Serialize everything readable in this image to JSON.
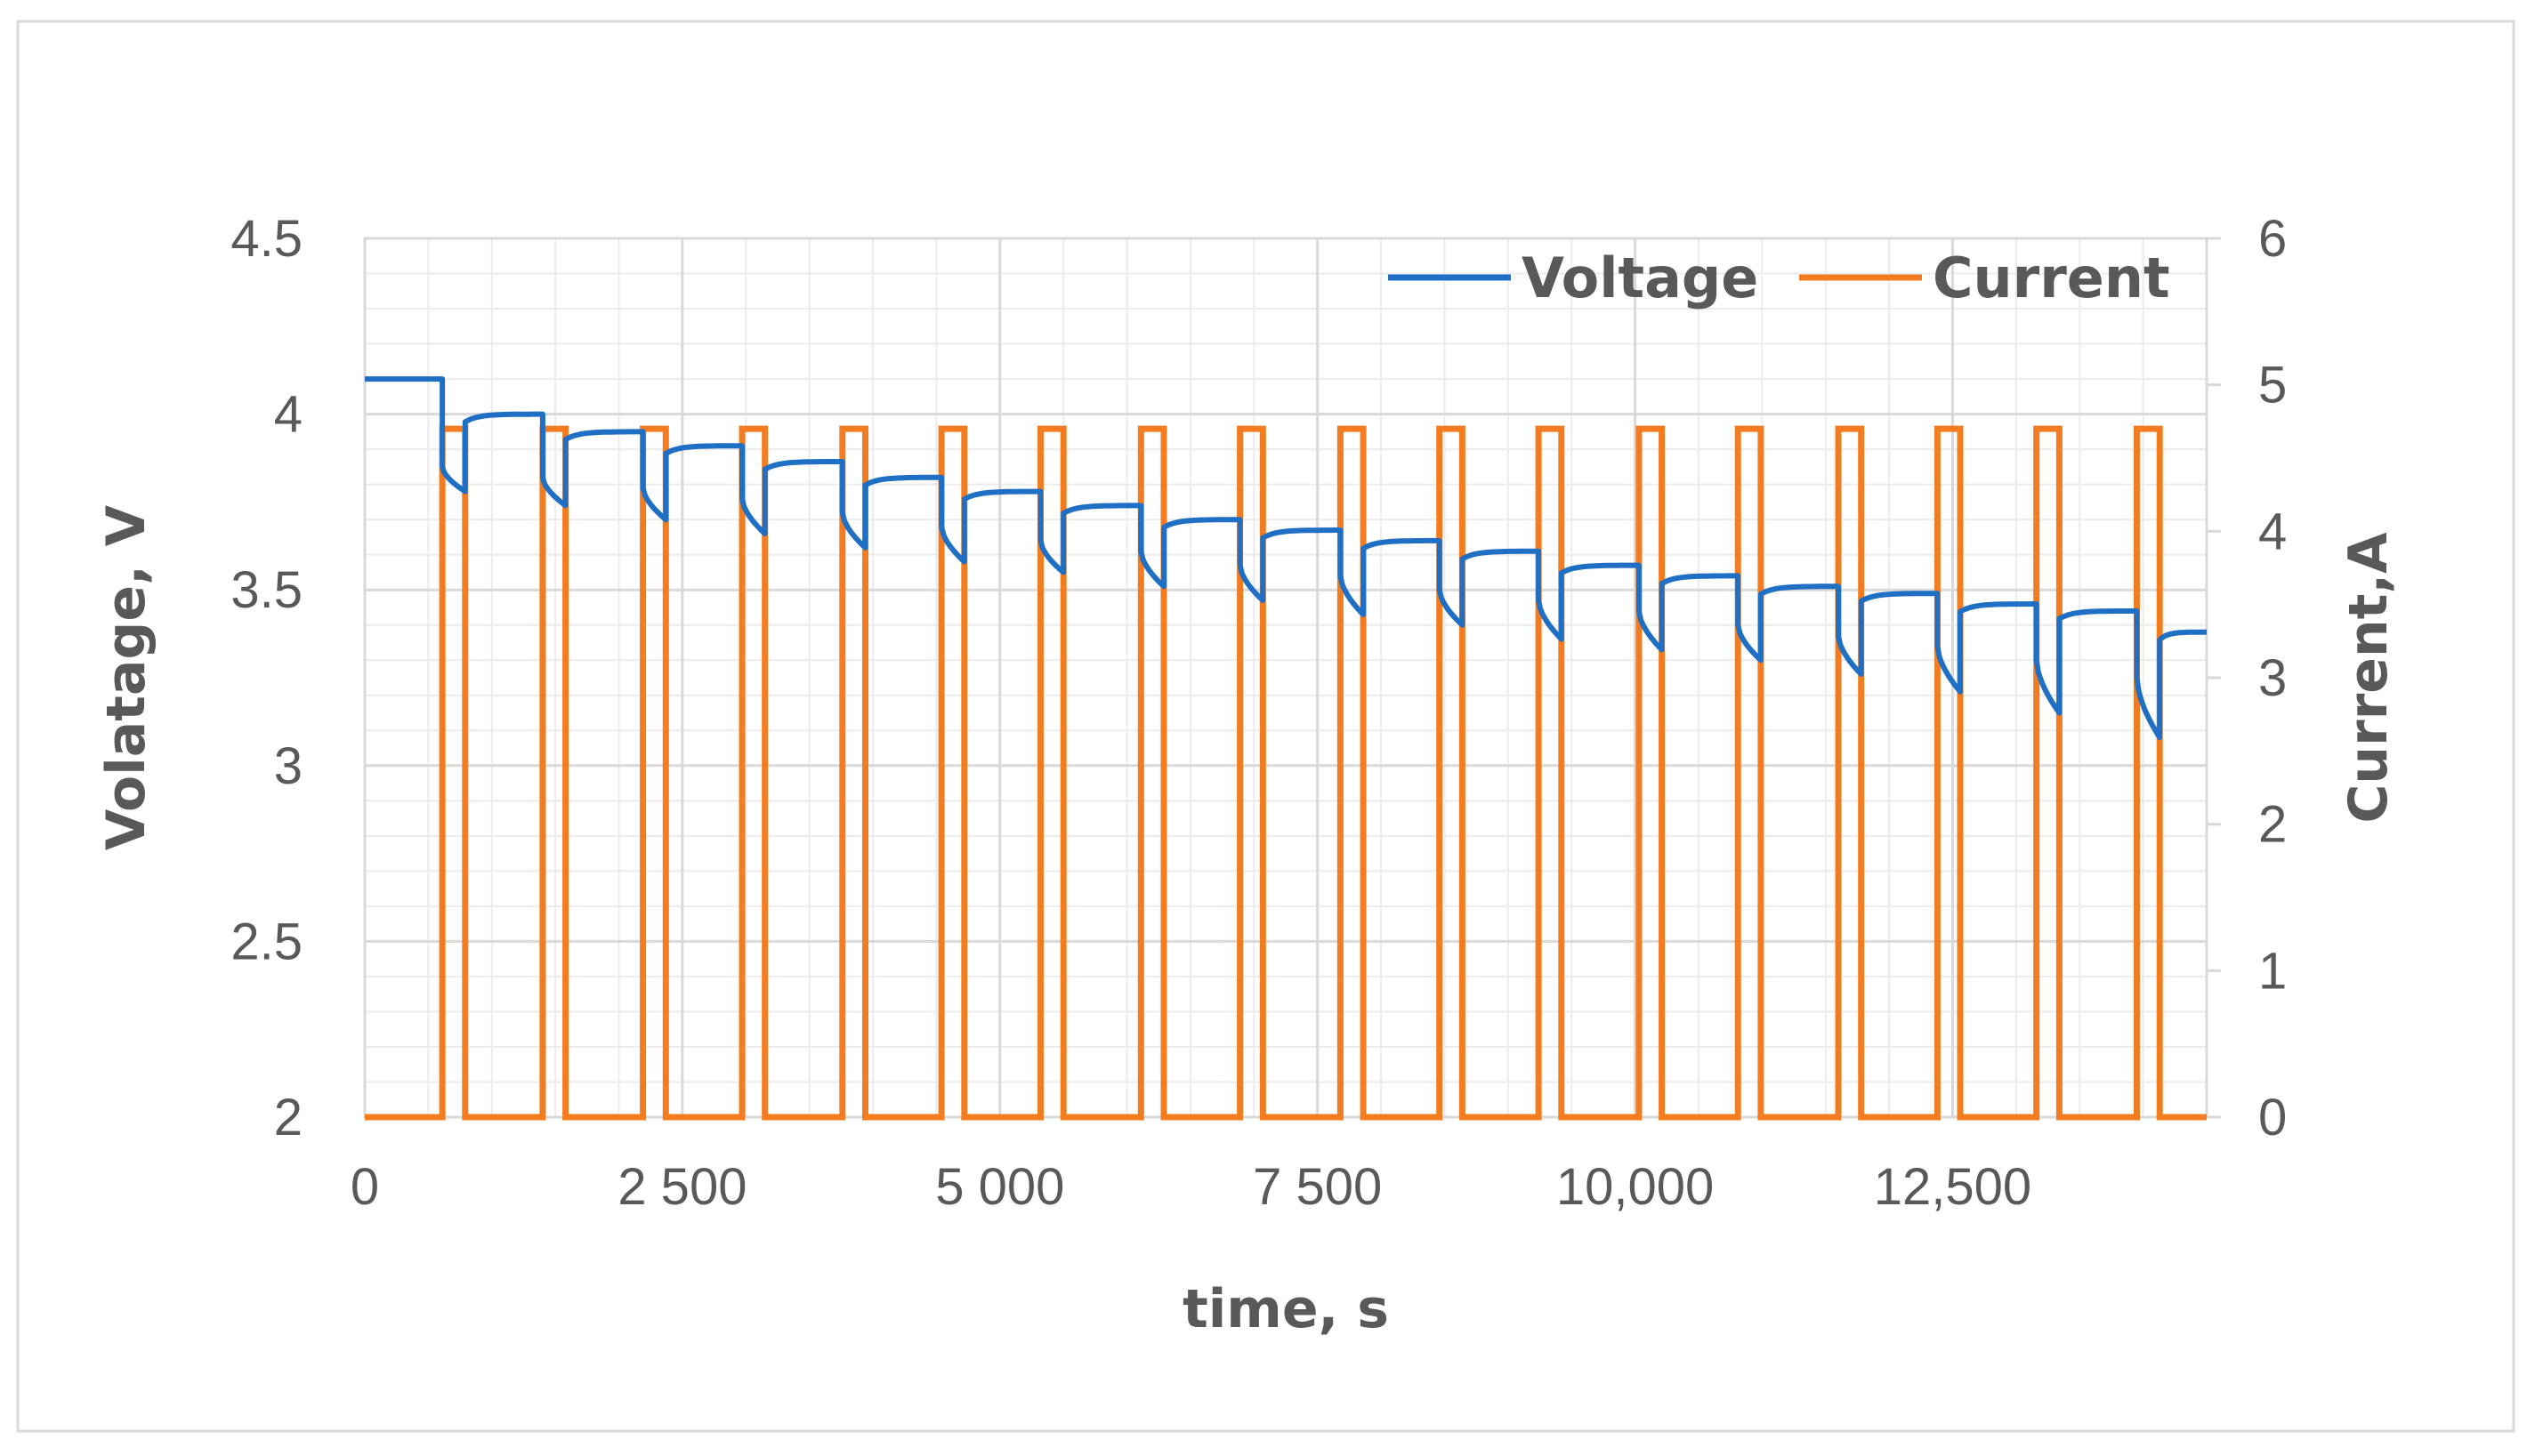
{
  "chart_data": {
    "type": "line",
    "title": "",
    "xlabel": "time, s",
    "ylabel_left": "Volatage, V",
    "ylabel_right": "Current,A",
    "xlim": [
      0,
      14500
    ],
    "ylim_left": [
      2,
      4.5
    ],
    "ylim_right": [
      0,
      6
    ],
    "x_ticks": [
      0,
      2500,
      5000,
      7500,
      10000,
      12500
    ],
    "x_tick_labels": [
      "0",
      "2 500",
      "5 000",
      "7 500",
      "10,000",
      "12,500"
    ],
    "y_left_ticks": [
      2,
      2.5,
      3,
      3.5,
      4,
      4.5
    ],
    "y_left_tick_labels": [
      "2",
      "2.5",
      "3",
      "3.5",
      "4",
      "4.5"
    ],
    "y_right_ticks": [
      0,
      1,
      2,
      3,
      4,
      5,
      6
    ],
    "y_right_tick_labels": [
      "0",
      "1",
      "2",
      "3",
      "4",
      "5",
      "6"
    ],
    "grid": true,
    "legend_position": "top-right",
    "colors": {
      "voltage": "#1F6FC5",
      "current": "#F47C20",
      "grid_major": "#D9D9D9",
      "grid_minor": "#ECECEC",
      "frame": "#D9D9D9"
    },
    "series": [
      {
        "name": "Voltage",
        "axis": "left",
        "pulse_starts": [
          610,
          1400,
          2190,
          2970,
          3760,
          4540,
          5320,
          6110,
          6890,
          7680,
          8460,
          9240,
          10030,
          10810,
          11600,
          12380,
          13160,
          13950
        ],
        "pulse_ends": [
          790,
          1580,
          2370,
          3150,
          3940,
          4720,
          5500,
          6290,
          7070,
          7860,
          8640,
          9420,
          10210,
          10990,
          11780,
          12560,
          13340,
          14130
        ],
        "rest_voltages": [
          4.1,
          4.0,
          3.95,
          3.91,
          3.865,
          3.82,
          3.78,
          3.74,
          3.7,
          3.67,
          3.64,
          3.61,
          3.57,
          3.54,
          3.51,
          3.49,
          3.46,
          3.44,
          3.38
        ],
        "pulse_start_voltages": [
          3.85,
          3.82,
          3.79,
          3.76,
          3.72,
          3.68,
          3.64,
          3.61,
          3.57,
          3.54,
          3.5,
          3.47,
          3.44,
          3.4,
          3.37,
          3.34,
          3.3,
          3.25
        ],
        "pulse_end_voltages": [
          3.78,
          3.74,
          3.7,
          3.66,
          3.62,
          3.58,
          3.55,
          3.51,
          3.47,
          3.43,
          3.4,
          3.36,
          3.33,
          3.3,
          3.26,
          3.21,
          3.15,
          3.08
        ]
      },
      {
        "name": "Current",
        "axis": "right",
        "pulse_level": 4.7,
        "rest_level": 0,
        "pulse_starts": [
          610,
          1400,
          2190,
          2970,
          3760,
          4540,
          5320,
          6110,
          6890,
          7680,
          8460,
          9240,
          10030,
          10810,
          11600,
          12380,
          13160,
          13950
        ],
        "pulse_ends": [
          790,
          1580,
          2370,
          3150,
          3940,
          4720,
          5500,
          6290,
          7070,
          7860,
          8640,
          9420,
          10210,
          10990,
          11780,
          12560,
          13340,
          14130
        ]
      }
    ]
  }
}
